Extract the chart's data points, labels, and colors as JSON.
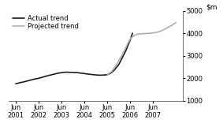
{
  "ylim": [
    1000,
    5000
  ],
  "yticks": [
    1000,
    2000,
    3000,
    4000,
    5000
  ],
  "xtick_labels": [
    "Jun\n2001",
    "Jun\n2002",
    "Jun\n2003",
    "Jun\n2004",
    "Jun\n2005",
    "Jun\n2006",
    "Jun\n2007"
  ],
  "xtick_positions": [
    0,
    1,
    2,
    3,
    4,
    5,
    6
  ],
  "actual_x": [
    0.0,
    0.1,
    0.2,
    0.35,
    0.5,
    0.65,
    0.8,
    1.0,
    1.15,
    1.3,
    1.5,
    1.7,
    1.85,
    2.0,
    2.15,
    2.3,
    2.5,
    2.7,
    2.85,
    3.0,
    3.2,
    3.4,
    3.6,
    3.8,
    4.0,
    4.15,
    4.3,
    4.5,
    4.65,
    4.8,
    5.0,
    5.1
  ],
  "actual_y": [
    1750,
    1770,
    1800,
    1830,
    1870,
    1910,
    1950,
    1990,
    2030,
    2080,
    2130,
    2180,
    2220,
    2240,
    2260,
    2260,
    2250,
    2240,
    2220,
    2200,
    2170,
    2150,
    2130,
    2130,
    2150,
    2220,
    2350,
    2600,
    2900,
    3200,
    3700,
    4000
  ],
  "projected_x": [
    4.0,
    4.2,
    4.4,
    4.6,
    4.8,
    5.0,
    5.2,
    5.4,
    5.6,
    5.8,
    6.0,
    6.2,
    6.4,
    6.6,
    6.8,
    7.0
  ],
  "projected_y": [
    2150,
    2300,
    2600,
    2950,
    3350,
    3750,
    3920,
    3970,
    3980,
    3990,
    4010,
    4050,
    4120,
    4230,
    4340,
    4470
  ],
  "actual_color": "#1a1a1a",
  "projected_color": "#b0b0b0",
  "background_color": "#ffffff",
  "linewidth": 1.2,
  "legend_fontsize": 6.0,
  "tick_fontsize": 6.0,
  "ylabel_fontsize": 6.5
}
